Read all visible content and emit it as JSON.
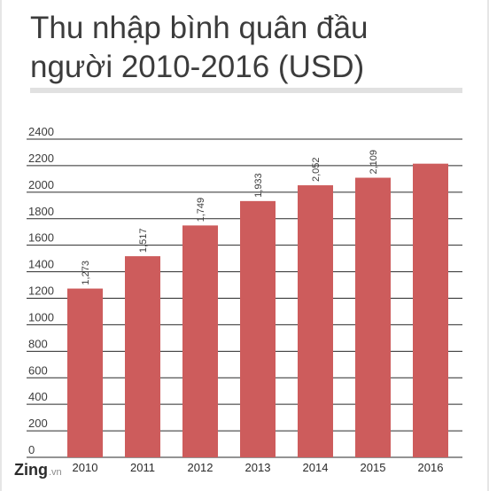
{
  "title_line1": "Thu nhập bình quân đầu",
  "title_line2": "người 2010-2016 (USD)",
  "logo": {
    "brand": "Zing",
    "suffix": ".vn"
  },
  "colors": {
    "bar": "#cd5c5c",
    "grid": "#2a2a2a",
    "text": "#3c3c3c",
    "rule": "#e1e1e1"
  },
  "chart_data": {
    "type": "bar",
    "title": "Thu nhập bình quân đầu người 2010-2016 (USD)",
    "categories": [
      "2010",
      "2011",
      "2012",
      "2013",
      "2014",
      "2015",
      "2016"
    ],
    "values": [
      1273,
      1517,
      1749,
      1933,
      2052,
      2109,
      2215
    ],
    "value_labels": [
      "1,273",
      "1,517",
      "1,749",
      "1,933",
      "2,052",
      "2,109",
      ""
    ],
    "yticks": [
      "0",
      "200",
      "400",
      "600",
      "800",
      "1000",
      "1200",
      "1400",
      "1600",
      "1800",
      "2000",
      "2200",
      "2400"
    ],
    "ylim": [
      0,
      2400
    ],
    "xlabel": "",
    "ylabel": "",
    "grid": true,
    "legend": "none"
  }
}
